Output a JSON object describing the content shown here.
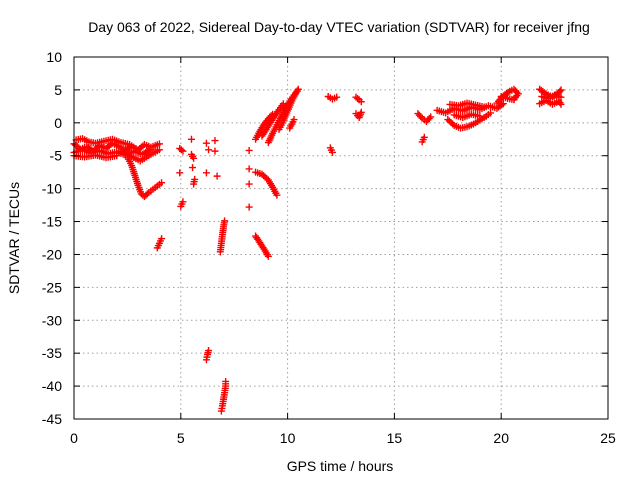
{
  "chart_data": {
    "type": "scatter",
    "title": "Day 063 of 2022, Sidereal Day-to-day VTEC variation (SDTVAR) for receiver jfng",
    "xlabel": "GPS time / hours",
    "ylabel": "SDTVAR / TECUs",
    "xlim": [
      0,
      25
    ],
    "ylim": [
      -45,
      10
    ],
    "xticks": [
      0,
      5,
      10,
      15,
      20,
      25
    ],
    "yticks": [
      10,
      5,
      0,
      -5,
      -10,
      -15,
      -20,
      -25,
      -30,
      -35,
      -40,
      -45
    ],
    "grid": true,
    "marker": "plus",
    "colors": {
      "series": "#ff0000",
      "grid": "#a0a0a0",
      "axes": "#000000"
    },
    "series": [
      {
        "name": "SDTVAR",
        "segments": [
          [
            [
              0.0,
              -3.2
            ],
            [
              0.3,
              -4.0
            ],
            [
              0.6,
              -3.6
            ],
            [
              0.9,
              -4.3
            ],
            [
              1.2,
              -3.4
            ],
            [
              1.5,
              -3.9
            ],
            [
              1.8,
              -3.1
            ],
            [
              2.1,
              -3.6
            ],
            [
              2.4,
              -4.2
            ],
            [
              2.7,
              -3.5
            ],
            [
              3.0,
              -4.1
            ],
            [
              3.3,
              -3.3
            ],
            [
              3.6,
              -3.7
            ],
            [
              4.0,
              -3.2
            ]
          ],
          [
            [
              0.0,
              -4.5
            ],
            [
              0.4,
              -4.1
            ],
            [
              0.8,
              -4.6
            ],
            [
              1.2,
              -4.2
            ],
            [
              1.6,
              -4.7
            ],
            [
              2.0,
              -4.4
            ],
            [
              2.4,
              -4.9
            ],
            [
              2.8,
              -4.3
            ],
            [
              3.2,
              -4.8
            ],
            [
              3.6,
              -4.0
            ]
          ],
          [
            [
              0.1,
              -2.6
            ],
            [
              0.4,
              -2.4
            ],
            [
              0.7,
              -2.9
            ],
            [
              1.0,
              -3.1
            ],
            [
              1.4,
              -2.8
            ],
            [
              1.8,
              -2.5
            ],
            [
              2.2,
              -3.0
            ],
            [
              2.6,
              -3.3
            ]
          ],
          [
            [
              0.0,
              -5.0
            ],
            [
              0.5,
              -5.2
            ],
            [
              1.0,
              -4.9
            ],
            [
              1.5,
              -5.3
            ],
            [
              2.0,
              -5.0
            ]
          ],
          [
            [
              2.5,
              -5.2
            ],
            [
              2.7,
              -6.5
            ],
            [
              2.85,
              -8.0
            ],
            [
              3.0,
              -9.5
            ],
            [
              3.15,
              -10.8
            ],
            [
              3.3,
              -11.2
            ],
            [
              3.5,
              -10.6
            ],
            [
              3.7,
              -10.1
            ],
            [
              3.9,
              -9.6
            ],
            [
              4.1,
              -9.1
            ]
          ],
          [
            [
              2.2,
              -4.3
            ],
            [
              2.5,
              -4.8
            ],
            [
              2.8,
              -5.3
            ],
            [
              3.1,
              -5.8
            ],
            [
              3.4,
              -5.2
            ],
            [
              3.7,
              -4.6
            ],
            [
              4.0,
              -4.1
            ]
          ],
          [
            [
              3.9,
              -19.0
            ],
            [
              4.0,
              -18.3
            ],
            [
              4.1,
              -17.6
            ]
          ],
          [
            [
              4.95,
              -3.9
            ],
            [
              5.1,
              -4.3
            ]
          ],
          [
            [
              5.0,
              -12.7
            ],
            [
              5.1,
              -12.0
            ]
          ],
          [
            [
              4.95,
              -7.6
            ]
          ],
          [
            [
              5.5,
              -2.5
            ]
          ],
          [
            [
              5.5,
              -4.8
            ],
            [
              5.6,
              -5.4
            ]
          ],
          [
            [
              5.6,
              -9.3
            ],
            [
              5.65,
              -8.6
            ]
          ],
          [
            [
              5.55,
              -6.8
            ]
          ],
          [
            [
              6.2,
              -3.1
            ]
          ],
          [
            [
              6.2,
              -7.6
            ]
          ],
          [
            [
              6.3,
              -4.1
            ]
          ],
          [
            [
              6.2,
              -36.0
            ],
            [
              6.25,
              -35.2
            ],
            [
              6.3,
              -34.6
            ]
          ],
          [
            [
              6.6,
              -2.7
            ]
          ],
          [
            [
              6.6,
              -4.3
            ]
          ],
          [
            [
              6.7,
              -8.1
            ]
          ],
          [
            [
              6.85,
              -19.6
            ],
            [
              6.9,
              -18.3
            ],
            [
              6.95,
              -17.0
            ],
            [
              7.0,
              -15.8
            ],
            [
              7.05,
              -14.9
            ]
          ],
          [
            [
              6.9,
              -43.8
            ],
            [
              6.95,
              -43.0
            ],
            [
              7.0,
              -42.0
            ],
            [
              7.05,
              -41.0
            ],
            [
              7.1,
              -40.0
            ],
            [
              7.1,
              -39.3
            ]
          ],
          [
            [
              8.2,
              -4.2
            ]
          ],
          [
            [
              8.2,
              -7.0
            ]
          ],
          [
            [
              8.2,
              -9.3
            ]
          ],
          [
            [
              8.2,
              -12.8
            ]
          ],
          [
            [
              8.5,
              -17.2
            ],
            [
              8.7,
              -18.2
            ],
            [
              8.9,
              -19.2
            ],
            [
              9.1,
              -20.3
            ]
          ],
          [
            [
              8.5,
              -7.5
            ],
            [
              8.8,
              -7.8
            ],
            [
              9.1,
              -8.7
            ],
            [
              9.3,
              -9.8
            ],
            [
              9.5,
              -11.0
            ]
          ],
          [
            [
              8.5,
              -2.5
            ],
            [
              8.7,
              -1.3
            ],
            [
              8.9,
              -0.2
            ],
            [
              9.1,
              0.6
            ],
            [
              9.3,
              1.3
            ]
          ],
          [
            [
              8.8,
              -2.0
            ],
            [
              9.0,
              -1.0
            ],
            [
              9.2,
              0.1
            ],
            [
              9.4,
              1.1
            ],
            [
              9.6,
              2.0
            ],
            [
              9.8,
              2.9
            ]
          ],
          [
            [
              9.1,
              -3.0
            ],
            [
              9.3,
              -1.6
            ],
            [
              9.5,
              -0.3
            ],
            [
              9.7,
              1.0
            ],
            [
              9.9,
              2.2
            ],
            [
              10.1,
              3.3
            ],
            [
              10.3,
              4.2
            ],
            [
              10.45,
              4.8
            ]
          ],
          [
            [
              9.6,
              -1.0
            ],
            [
              9.8,
              0.3
            ],
            [
              10.0,
              1.8
            ],
            [
              10.2,
              3.3
            ],
            [
              10.4,
              4.6
            ],
            [
              10.5,
              5.1
            ]
          ],
          [
            [
              10.1,
              -0.8
            ],
            [
              10.2,
              -0.2
            ],
            [
              10.3,
              0.5
            ]
          ],
          [
            [
              12.0,
              -3.8
            ],
            [
              12.1,
              -4.5
            ]
          ],
          [
            [
              11.9,
              4.0
            ],
            [
              12.1,
              3.6
            ],
            [
              12.3,
              3.9
            ]
          ],
          [
            [
              13.2,
              3.9
            ],
            [
              13.35,
              3.5
            ],
            [
              13.45,
              3.2
            ]
          ],
          [
            [
              13.2,
              1.4
            ],
            [
              13.35,
              0.8
            ],
            [
              13.45,
              1.6
            ]
          ],
          [
            [
              16.1,
              1.4
            ],
            [
              16.3,
              0.7
            ],
            [
              16.5,
              0.2
            ],
            [
              16.7,
              0.9
            ]
          ],
          [
            [
              16.3,
              -2.9
            ],
            [
              16.4,
              -2.2
            ]
          ],
          [
            [
              17.0,
              1.9
            ],
            [
              17.4,
              1.5
            ],
            [
              17.8,
              2.2
            ],
            [
              18.2,
              1.8
            ],
            [
              18.6,
              2.4
            ],
            [
              19.0,
              2.0
            ],
            [
              19.4,
              2.6
            ],
            [
              19.8,
              2.2
            ],
            [
              20.1,
              2.9
            ]
          ],
          [
            [
              17.5,
              0.5
            ],
            [
              17.8,
              -0.4
            ],
            [
              18.1,
              -0.8
            ],
            [
              18.4,
              -0.6
            ],
            [
              18.7,
              -0.2
            ],
            [
              19.0,
              0.4
            ],
            [
              19.3,
              1.0
            ],
            [
              19.5,
              1.5
            ]
          ],
          [
            [
              17.6,
              2.8
            ],
            [
              18.0,
              2.6
            ],
            [
              18.4,
              3.0
            ],
            [
              18.8,
              2.7
            ],
            [
              19.2,
              2.4
            ]
          ],
          [
            [
              17.8,
              1.2
            ],
            [
              18.2,
              0.8
            ],
            [
              18.6,
              1.3
            ],
            [
              19.0,
              1.0
            ]
          ],
          [
            [
              19.8,
              3.0
            ],
            [
              20.1,
              4.1
            ],
            [
              20.4,
              4.8
            ],
            [
              20.6,
              5.1
            ],
            [
              20.8,
              4.4
            ],
            [
              20.6,
              3.6
            ]
          ],
          [
            [
              20.0,
              4.0
            ],
            [
              20.3,
              3.7
            ],
            [
              20.6,
              3.5
            ]
          ],
          [
            [
              21.8,
              5.1
            ],
            [
              22.1,
              4.4
            ],
            [
              22.4,
              3.9
            ],
            [
              22.7,
              4.6
            ],
            [
              22.8,
              5.0
            ]
          ],
          [
            [
              21.8,
              2.9
            ],
            [
              22.1,
              3.4
            ],
            [
              22.4,
              2.8
            ],
            [
              22.7,
              3.3
            ],
            [
              22.8,
              2.8
            ]
          ],
          [
            [
              21.9,
              4.0
            ],
            [
              22.2,
              3.7
            ],
            [
              22.5,
              4.2
            ],
            [
              22.8,
              3.9
            ]
          ]
        ]
      }
    ]
  }
}
